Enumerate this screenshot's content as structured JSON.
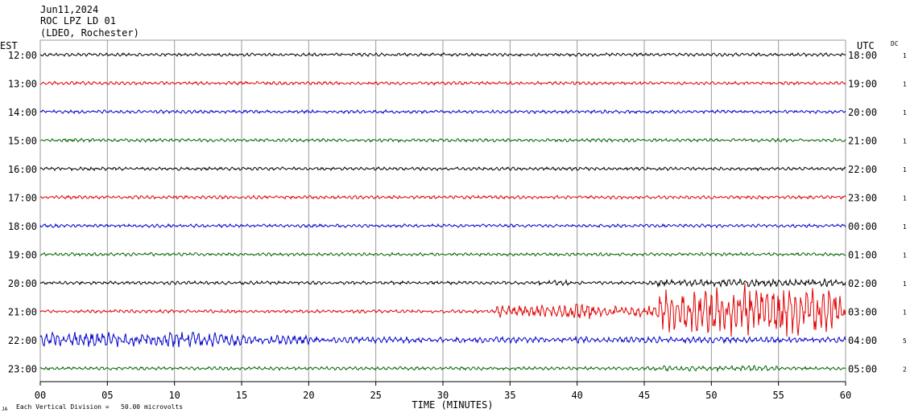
{
  "header": {
    "date": "Jun11,2024",
    "station": "ROC LPZ LD 01",
    "network": "(LDEO, Rochester)"
  },
  "chart_data": {
    "type": "line",
    "title": "",
    "left_timezone": "EST",
    "right_timezone": "UTC",
    "dc_header": "DC",
    "xlabel": "TIME (MINUTES)",
    "xlim": [
      0,
      60
    ],
    "x_ticks": [
      "00",
      "05",
      "10",
      "15",
      "20",
      "25",
      "30",
      "35",
      "40",
      "45",
      "50",
      "55",
      "60"
    ],
    "footer_note": "Each Vertical Division =   50.00 microvolts",
    "footer_mark": "JA",
    "trace_colors": [
      "#000000",
      "#e00000",
      "#0000cc",
      "#006400"
    ],
    "rows": [
      {
        "est": "12:00",
        "utc": "18:00",
        "dc": "1",
        "color": "#000000"
      },
      {
        "est": "13:00",
        "utc": "19:00",
        "dc": "1",
        "color": "#e00000"
      },
      {
        "est": "14:00",
        "utc": "20:00",
        "dc": "1",
        "color": "#0000cc"
      },
      {
        "est": "15:00",
        "utc": "21:00",
        "dc": "1",
        "color": "#006400"
      },
      {
        "est": "16:00",
        "utc": "22:00",
        "dc": "1",
        "color": "#000000"
      },
      {
        "est": "17:00",
        "utc": "23:00",
        "dc": "1",
        "color": "#e00000"
      },
      {
        "est": "18:00",
        "utc": "00:00",
        "dc": "1",
        "color": "#0000cc"
      },
      {
        "est": "19:00",
        "utc": "01:00",
        "dc": "1",
        "color": "#006400"
      },
      {
        "est": "20:00",
        "utc": "02:00",
        "dc": "1",
        "color": "#000000"
      },
      {
        "est": "21:00",
        "utc": "03:00",
        "dc": "1",
        "color": "#e00000"
      },
      {
        "est": "22:00",
        "utc": "04:00",
        "dc": "5",
        "color": "#0000cc"
      },
      {
        "est": "23:00",
        "utc": "05:00",
        "dc": "2",
        "color": "#006400"
      }
    ]
  }
}
